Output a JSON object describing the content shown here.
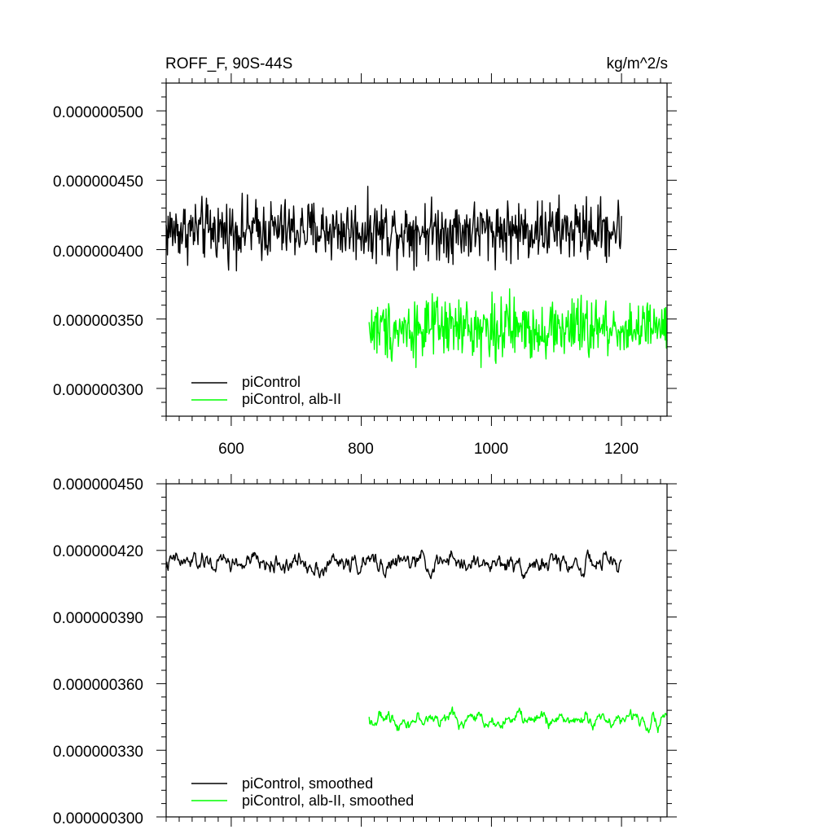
{
  "chart_data": [
    {
      "type": "line",
      "title": "ROFF_F, 90S-44S",
      "units": "kg/m^2/s",
      "xlim": [
        500,
        1270
      ],
      "ylim": [
        2.8e-07,
        5.2e-07
      ],
      "xticks": [
        600,
        800,
        1000,
        1200
      ],
      "xtick_labels": [
        "600",
        "800",
        "1000",
        "1200"
      ],
      "yticks": [
        3e-07,
        3.5e-07,
        4e-07,
        4.5e-07,
        5e-07
      ],
      "ytick_labels": [
        "0.000000300",
        "0.000000350",
        "0.000000400",
        "0.000000450",
        "0.000000500"
      ],
      "legend_position": "bottom-left",
      "series": [
        {
          "name": "piControl",
          "color": "#000000",
          "x_start": 500,
          "x_end": 1200,
          "mean": 4.14e-07,
          "amplitude": 2.5e-08
        },
        {
          "name": "piControl, alb-II",
          "color": "#00ff00",
          "x_start": 812,
          "x_end": 1270,
          "mean": 3.43e-07,
          "amplitude": 2.5e-08
        }
      ]
    },
    {
      "type": "line",
      "title": "",
      "xlim": [
        500,
        1270
      ],
      "ylim": [
        3e-07,
        4.5e-07
      ],
      "xticks": [
        600,
        800,
        1000,
        1200
      ],
      "yticks": [
        3e-07,
        3.3e-07,
        3.6e-07,
        3.9e-07,
        4.2e-07,
        4.5e-07
      ],
      "ytick_labels": [
        "0.000000300",
        "0.000000330",
        "0.000000360",
        "0.000000390",
        "0.000000420",
        "0.000000450"
      ],
      "legend_position": "bottom-left",
      "series": [
        {
          "name": "piControl, smoothed",
          "color": "#000000",
          "x_start": 500,
          "x_end": 1200,
          "mean": 4.14e-07,
          "amplitude": 8e-09
        },
        {
          "name": "piControl, alb-II, smoothed",
          "color": "#00ff00",
          "x_start": 812,
          "x_end": 1270,
          "mean": 3.44e-07,
          "amplitude": 6e-09
        }
      ]
    }
  ]
}
